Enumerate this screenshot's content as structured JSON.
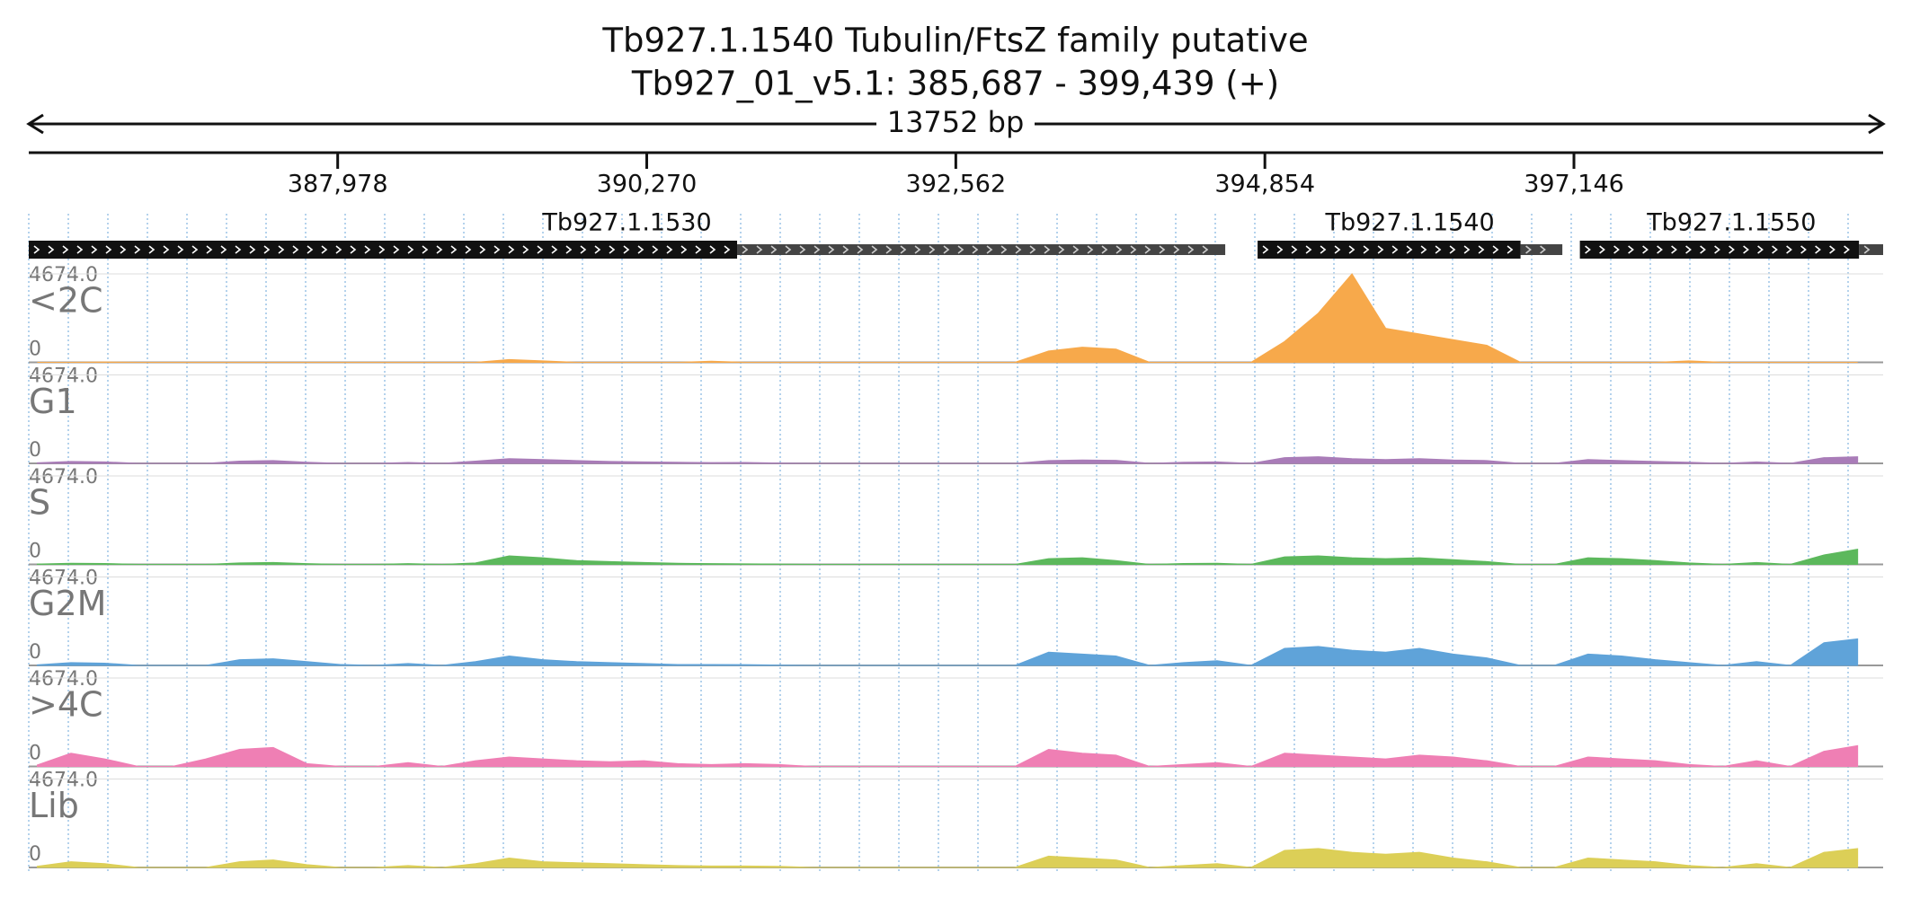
{
  "chart_data": {
    "type": "coverage",
    "title": "Tb927.1.1540  Tubulin/FtsZ family  putative",
    "subtitle": "Tb927_01_v5.1: 385,687 - 399,439 (+)",
    "span_label": "13752 bp",
    "xlim": [
      385687,
      399439
    ],
    "xticks": [
      {
        "value": 387978,
        "label": "387,978"
      },
      {
        "value": 390270,
        "label": "390,270"
      },
      {
        "value": 392562,
        "label": "392,562"
      },
      {
        "value": 394854,
        "label": "394,854"
      },
      {
        "value": 397146,
        "label": "397,146"
      }
    ],
    "genes": [
      {
        "name": "Tb927.1.1530",
        "cds": [
          385687,
          390940
        ],
        "utr": [
          390940,
          394560
        ]
      },
      {
        "name": "Tb927.1.1540",
        "cds": [
          394800,
          396750
        ],
        "utr": [
          396750,
          397060
        ]
      },
      {
        "name": "Tb927.1.1550",
        "cds": [
          397190,
          399260
        ],
        "utr": [
          399260,
          399439
        ]
      }
    ],
    "ylim": [
      0,
      4674
    ],
    "yticks": [
      0,
      {
        "value": 4674,
        "label": "4674.0"
      }
    ],
    "x": [
      385750,
      386000,
      386250,
      386500,
      386750,
      387000,
      387250,
      387500,
      387750,
      388000,
      388250,
      388500,
      388750,
      389000,
      389250,
      389500,
      389750,
      390000,
      390250,
      390500,
      390750,
      391000,
      391250,
      391500,
      391750,
      392000,
      392250,
      392500,
      392750,
      393000,
      393250,
      393500,
      393750,
      394000,
      394250,
      394500,
      394750,
      395000,
      395250,
      395500,
      395750,
      396000,
      396250,
      396500,
      396750,
      397000,
      397250,
      397500,
      397750,
      398000,
      398250,
      398500,
      398750,
      399000,
      399250
    ],
    "series": [
      {
        "name": "<2C",
        "color": "#f7a94b",
        "values": [
          0,
          0,
          20,
          0,
          0,
          0,
          0,
          0,
          0,
          0,
          0,
          0,
          0,
          0,
          150,
          80,
          0,
          0,
          0,
          0,
          60,
          0,
          0,
          0,
          0,
          0,
          0,
          0,
          0,
          0,
          600,
          800,
          700,
          0,
          0,
          0,
          0,
          1100,
          2600,
          4674,
          1800,
          1500,
          1200,
          900,
          0,
          0,
          0,
          0,
          0,
          80,
          0,
          0,
          0,
          0,
          0
        ]
      },
      {
        "name": "G1",
        "color": "#a97cb8",
        "values": [
          30,
          100,
          80,
          0,
          0,
          0,
          120,
          150,
          60,
          0,
          0,
          50,
          0,
          120,
          250,
          200,
          150,
          100,
          80,
          60,
          40,
          50,
          20,
          0,
          0,
          0,
          0,
          0,
          0,
          0,
          150,
          180,
          160,
          0,
          60,
          80,
          0,
          300,
          350,
          250,
          200,
          250,
          180,
          150,
          0,
          0,
          200,
          150,
          100,
          60,
          0,
          80,
          0,
          300,
          350
        ]
      },
      {
        "name": "S",
        "color": "#5cb85c",
        "values": [
          20,
          60,
          50,
          0,
          0,
          0,
          80,
          100,
          40,
          0,
          0,
          40,
          0,
          80,
          450,
          350,
          200,
          150,
          100,
          60,
          40,
          30,
          20,
          0,
          0,
          0,
          0,
          0,
          0,
          0,
          300,
          350,
          200,
          0,
          50,
          60,
          0,
          400,
          450,
          350,
          300,
          350,
          250,
          150,
          0,
          0,
          350,
          300,
          200,
          80,
          0,
          100,
          0,
          500,
          800
        ]
      },
      {
        "name": "G2M",
        "color": "#5fa3d9",
        "values": [
          30,
          150,
          120,
          0,
          0,
          0,
          300,
          350,
          200,
          50,
          0,
          100,
          0,
          200,
          500,
          300,
          200,
          150,
          100,
          50,
          50,
          40,
          20,
          0,
          0,
          0,
          0,
          0,
          0,
          0,
          700,
          600,
          500,
          0,
          150,
          250,
          0,
          900,
          1000,
          800,
          700,
          900,
          600,
          400,
          0,
          0,
          600,
          500,
          300,
          150,
          0,
          200,
          0,
          1200,
          1400
        ]
      },
      {
        "name": ">4C",
        "color": "#ef7fb4",
        "values": [
          80,
          700,
          400,
          0,
          0,
          400,
          900,
          1000,
          150,
          0,
          0,
          200,
          0,
          300,
          500,
          400,
          300,
          250,
          300,
          150,
          100,
          150,
          100,
          0,
          0,
          0,
          0,
          0,
          0,
          0,
          900,
          700,
          600,
          0,
          100,
          200,
          0,
          700,
          600,
          500,
          400,
          600,
          500,
          300,
          0,
          0,
          500,
          400,
          300,
          100,
          0,
          300,
          0,
          800,
          1100
        ]
      },
      {
        "name": "Lib",
        "color": "#dccf57",
        "values": [
          60,
          300,
          200,
          0,
          0,
          0,
          300,
          400,
          150,
          0,
          0,
          100,
          0,
          200,
          500,
          300,
          250,
          200,
          150,
          100,
          80,
          80,
          60,
          0,
          0,
          0,
          0,
          0,
          0,
          0,
          600,
          500,
          400,
          0,
          100,
          200,
          0,
          900,
          1000,
          800,
          700,
          800,
          500,
          300,
          0,
          0,
          500,
          400,
          300,
          100,
          0,
          200,
          0,
          800,
          1000
        ]
      }
    ]
  }
}
